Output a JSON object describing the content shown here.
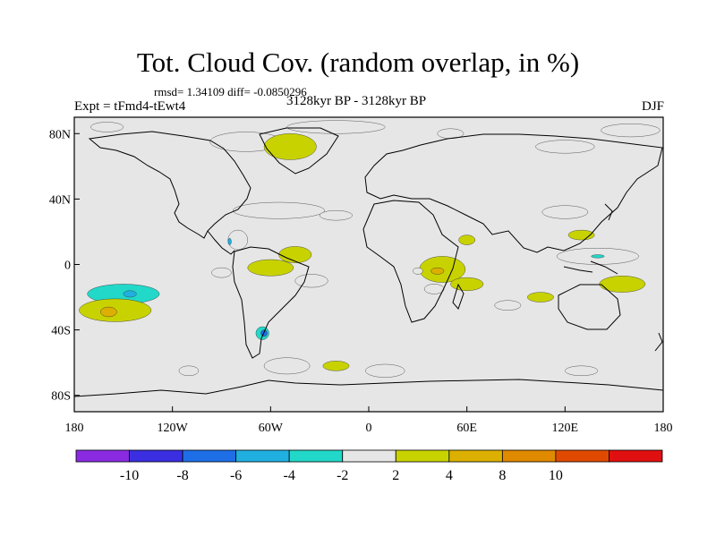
{
  "chart_data": {
    "type": "heatmap",
    "title": "Tot. Cloud Cov. (random overlap, in %)",
    "stats": "rmsd= 1.34109 diff= -0.0850296",
    "experiment": "Expt = tFmd4-tEwt4",
    "period": "3128kyr BP - 3128kyr BP",
    "season": "DJF",
    "x_ticks": [
      "180",
      "120W",
      "60W",
      "0",
      "60E",
      "120E",
      "180"
    ],
    "x_tick_values": [
      -180,
      -120,
      -60,
      0,
      60,
      120,
      180
    ],
    "y_ticks": [
      "80N",
      "40N",
      "0",
      "40S",
      "80S"
    ],
    "y_tick_values": [
      80,
      40,
      0,
      -40,
      -80
    ],
    "xlim": [
      -180,
      180
    ],
    "ylim": [
      -90,
      90
    ],
    "colorbar": {
      "levels": [
        "-10",
        "-8",
        "-6",
        "-4",
        "-2",
        "2",
        "4",
        "8",
        "10"
      ],
      "colors": [
        "#8a2be2",
        "#3a2ee0",
        "#1e6ee6",
        "#1fb0e0",
        "#22d8c8",
        "#e6e6e6",
        "#c8d200",
        "#dcb000",
        "#e08a00",
        "#e04a00",
        "#e01010"
      ]
    },
    "anomalies": [
      {
        "lon": -150,
        "lat": -18,
        "rx": 22,
        "ry": 6,
        "level": -4
      },
      {
        "lon": -146,
        "lat": -18,
        "rx": 4,
        "ry": 2,
        "level": -6
      },
      {
        "lon": -155,
        "lat": -28,
        "rx": 22,
        "ry": 7,
        "level": 2
      },
      {
        "lon": -159,
        "lat": -29,
        "rx": 5,
        "ry": 3,
        "level": 4
      },
      {
        "lon": -90,
        "lat": -5,
        "rx": 6,
        "ry": 3,
        "level": -2
      },
      {
        "lon": -65,
        "lat": -42,
        "rx": 4,
        "ry": 4,
        "level": -4
      },
      {
        "lon": -64,
        "lat": -42,
        "rx": 2,
        "ry": 2,
        "level": -8
      },
      {
        "lon": -80,
        "lat": 15,
        "rx": 6,
        "ry": 6,
        "level": -2
      },
      {
        "lon": -85,
        "lat": 14,
        "rx": 1,
        "ry": 2,
        "level": -6
      },
      {
        "lon": -60,
        "lat": -2,
        "rx": 14,
        "ry": 5,
        "level": 2
      },
      {
        "lon": -45,
        "lat": 6,
        "rx": 10,
        "ry": 5,
        "level": 2
      },
      {
        "lon": -35,
        "lat": -10,
        "rx": 10,
        "ry": 4,
        "level": -2
      },
      {
        "lon": -55,
        "lat": 33,
        "rx": 28,
        "ry": 5,
        "level": -2
      },
      {
        "lon": -20,
        "lat": 30,
        "rx": 10,
        "ry": 3,
        "level": -2
      },
      {
        "lon": -75,
        "lat": 75,
        "rx": 22,
        "ry": 6,
        "level": -2
      },
      {
        "lon": -48,
        "lat": 72,
        "rx": 16,
        "ry": 8,
        "level": 2
      },
      {
        "lon": -20,
        "lat": 84,
        "rx": 30,
        "ry": 4,
        "level": -2
      },
      {
        "lon": -160,
        "lat": 84,
        "rx": 10,
        "ry": 3,
        "level": -2
      },
      {
        "lon": 160,
        "lat": 82,
        "rx": 18,
        "ry": 4,
        "level": -2
      },
      {
        "lon": 120,
        "lat": 72,
        "rx": 18,
        "ry": 4,
        "level": -2
      },
      {
        "lon": 50,
        "lat": 80,
        "rx": 8,
        "ry": 3,
        "level": -2
      },
      {
        "lon": 45,
        "lat": -3,
        "rx": 14,
        "ry": 8,
        "level": 2
      },
      {
        "lon": 42,
        "lat": -4,
        "rx": 4,
        "ry": 2,
        "level": 4
      },
      {
        "lon": 30,
        "lat": -4,
        "rx": 3,
        "ry": 2,
        "level": -2
      },
      {
        "lon": 40,
        "lat": -15,
        "rx": 6,
        "ry": 3,
        "level": -2
      },
      {
        "lon": 60,
        "lat": -12,
        "rx": 10,
        "ry": 4,
        "level": 2
      },
      {
        "lon": 85,
        "lat": -25,
        "rx": 8,
        "ry": 3,
        "level": -2
      },
      {
        "lon": 60,
        "lat": 15,
        "rx": 5,
        "ry": 3,
        "level": 2
      },
      {
        "lon": 120,
        "lat": 32,
        "rx": 14,
        "ry": 4,
        "level": -2
      },
      {
        "lon": 140,
        "lat": 5,
        "rx": 25,
        "ry": 5,
        "level": -2
      },
      {
        "lon": 140,
        "lat": 5,
        "rx": 4,
        "ry": 1,
        "level": -4
      },
      {
        "lon": 105,
        "lat": -20,
        "rx": 8,
        "ry": 3,
        "level": 2
      },
      {
        "lon": 155,
        "lat": -12,
        "rx": 14,
        "ry": 5,
        "level": 2
      },
      {
        "lon": 130,
        "lat": 18,
        "rx": 8,
        "ry": 3,
        "level": 2
      },
      {
        "lon": -50,
        "lat": -62,
        "rx": 14,
        "ry": 5,
        "level": -2
      },
      {
        "lon": 10,
        "lat": -65,
        "rx": 12,
        "ry": 4,
        "level": -2
      },
      {
        "lon": -20,
        "lat": -62,
        "rx": 8,
        "ry": 3,
        "level": 2
      },
      {
        "lon": -110,
        "lat": -65,
        "rx": 6,
        "ry": 3,
        "level": -2
      },
      {
        "lon": 130,
        "lat": -65,
        "rx": 10,
        "ry": 3,
        "level": -2
      }
    ]
  }
}
